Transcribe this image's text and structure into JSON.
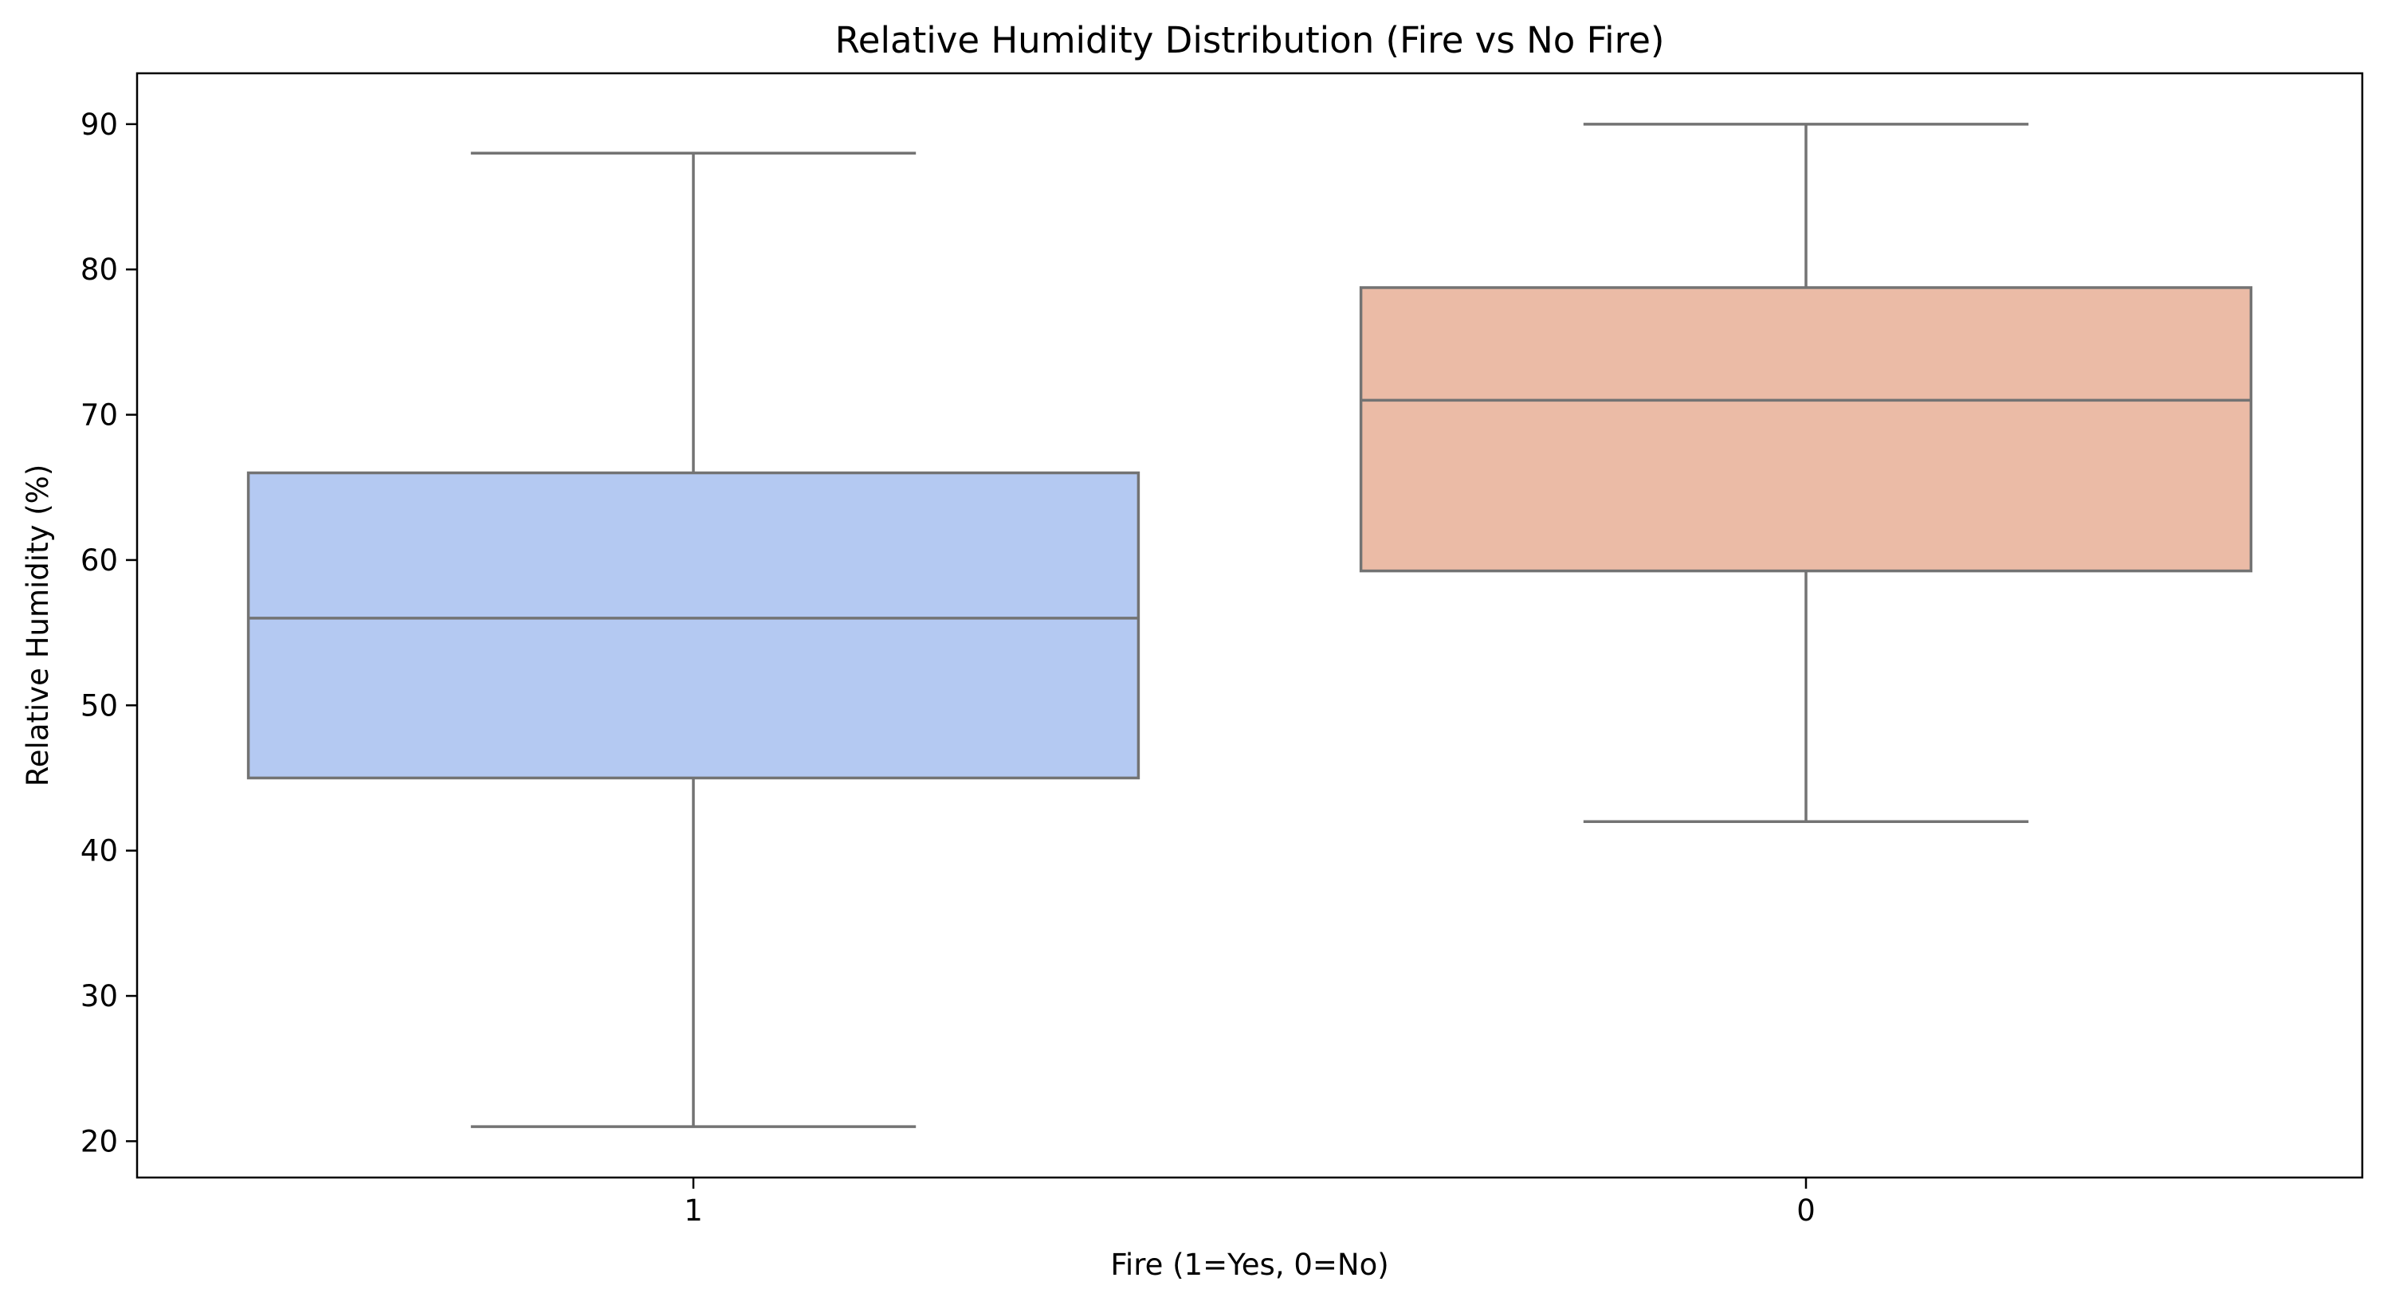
{
  "chart_data": {
    "type": "box",
    "title": "Relative Humidity Distribution (Fire vs No Fire)",
    "xlabel": "Fire (1=Yes, 0=No)",
    "ylabel": "Relative Humidity (%)",
    "categories": [
      "1",
      "0"
    ],
    "ylim": [
      17.5,
      93.5
    ],
    "yticks": [
      20,
      30,
      40,
      50,
      60,
      70,
      80,
      90
    ],
    "grid": false,
    "legend": "none",
    "boxes": [
      {
        "category": "1",
        "whisker_low": 21,
        "q1": 45,
        "median": 56,
        "q3": 66,
        "whisker_high": 88,
        "color": "#b4c9f2"
      },
      {
        "category": "0",
        "whisker_low": 42,
        "q1": 59.25,
        "median": 71,
        "q3": 78.75,
        "whisker_high": 90,
        "color": "#ebbba6"
      }
    ],
    "line_color": "#737373"
  }
}
